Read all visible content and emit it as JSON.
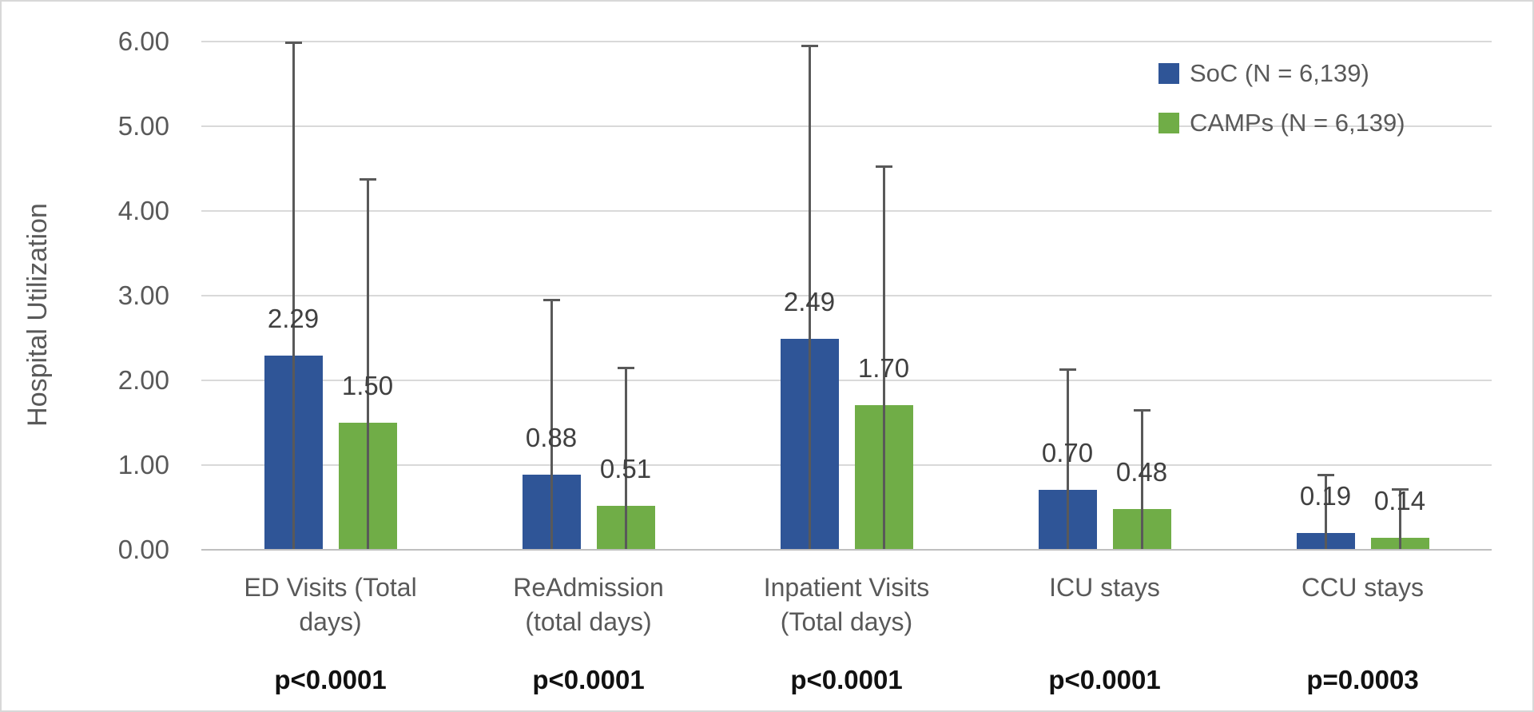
{
  "chart_data": {
    "type": "bar",
    "title": "",
    "ylabel": "Hospital Utilization",
    "ylim": [
      0,
      6
    ],
    "ytick_step": 1.0,
    "ytick_labels": [
      "0.00",
      "1.00",
      "2.00",
      "3.00",
      "4.00",
      "5.00",
      "6.00"
    ],
    "grid": true,
    "legend_position": "top-right",
    "categories": [
      {
        "label": "ED Visits (Total\ndays)",
        "p_value": "p<0.0001"
      },
      {
        "label": "ReAdmission\n(total days)",
        "p_value": "p<0.0001"
      },
      {
        "label": "Inpatient Visits\n(Total days)",
        "p_value": "p<0.0001"
      },
      {
        "label": "ICU stays",
        "p_value": "p<0.0001"
      },
      {
        "label": "CCU stays",
        "p_value": "p=0.0003"
      }
    ],
    "series": [
      {
        "name": "SoC (N = 6,139)",
        "color": "#2F5597",
        "values": [
          2.29,
          0.88,
          2.49,
          0.7,
          0.19
        ],
        "value_labels": [
          "2.29",
          "0.88",
          "2.49",
          "0.70",
          "0.19"
        ],
        "error_bar_top": [
          6.0,
          2.96,
          5.96,
          2.14,
          0.89
        ]
      },
      {
        "name": "CAMPs (N = 6,139)",
        "color": "#70AD47",
        "values": [
          1.5,
          0.51,
          1.7,
          0.48,
          0.14
        ],
        "value_labels": [
          "1.50",
          "0.51",
          "1.70",
          "0.48",
          "0.14"
        ],
        "error_bar_top": [
          4.39,
          2.16,
          4.54,
          1.66,
          0.72
        ]
      }
    ],
    "error_bar_color": "#595959",
    "gridline_color": "#d9d9d9"
  }
}
